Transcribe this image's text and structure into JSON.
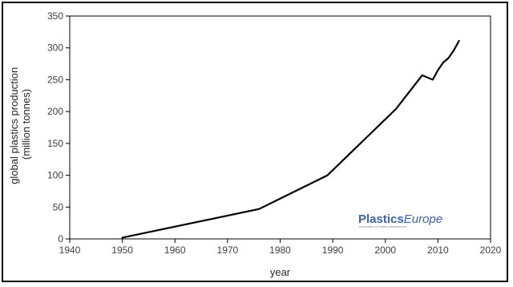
{
  "chart_data": {
    "type": "line",
    "xlabel": "year",
    "ylabel_lines": [
      "global plastics production",
      "(million tonnes)"
    ],
    "xlim": [
      1940,
      2020
    ],
    "ylim": [
      0,
      350
    ],
    "xticks": [
      1940,
      1950,
      1960,
      1970,
      1980,
      1990,
      2000,
      2010,
      2020
    ],
    "yticks": [
      0,
      50,
      100,
      150,
      200,
      250,
      300,
      350
    ],
    "grid": false,
    "series": [
      {
        "color": "#000000",
        "points": [
          [
            1950,
            2
          ],
          [
            1976,
            47
          ],
          [
            1989,
            100
          ],
          [
            2002,
            204
          ],
          [
            2007,
            257
          ],
          [
            2009,
            250
          ],
          [
            2010,
            265
          ],
          [
            2011,
            277
          ],
          [
            2012,
            284
          ],
          [
            2013,
            296
          ],
          [
            2014,
            311
          ]
        ]
      }
    ]
  },
  "logo": {
    "text_main": "Plastics",
    "text_accent": "Europe",
    "tagline": "Association of Plastics Manufacturers",
    "color": "#3a63a8"
  }
}
